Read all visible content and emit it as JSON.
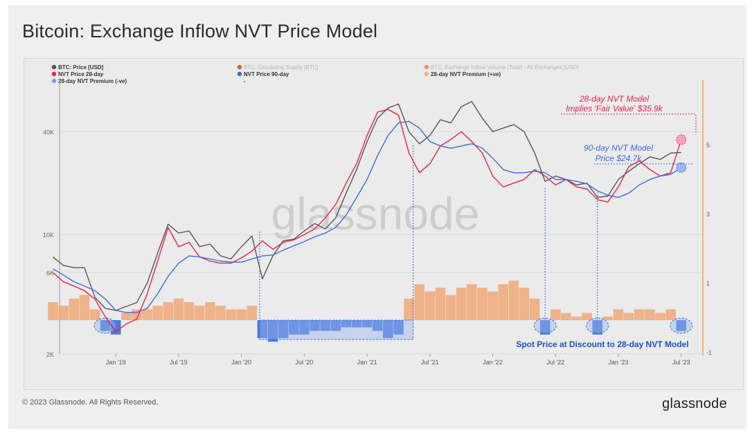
{
  "title": "Bitcoin: Exchange Inflow NVT Price Model",
  "footer": {
    "copyright": "© 2023 Glassnode. All Rights Reserved.",
    "brand": "glassnode"
  },
  "watermark": "glassnode",
  "colors": {
    "price": "#555555",
    "nvt28": "#e8204a",
    "nvt90": "#3b6bdc",
    "premium_pos": "#f0a878",
    "premium_neg": "#3b6bdc",
    "supply": "#e0592a",
    "inflow": "#e8926a"
  },
  "legend": [
    {
      "label": "BTC: Price [USD]",
      "color": "#555555",
      "muted": false
    },
    {
      "label": "BTC: Circulating Supply [BTC]",
      "color": "#e0592a",
      "muted": true
    },
    {
      "label": "BTC: Exchange Inflow Volume (Total) - All Exchanges [USD]",
      "color": "#e8926a",
      "muted": true
    },
    {
      "label": "NVT Price 28-day",
      "color": "#e8204a",
      "muted": false
    },
    {
      "label": "NVT Price 90-day",
      "color": "#3b6bdc",
      "muted": false
    },
    {
      "label": "28-day NVT Premium (+ve)",
      "color": "#f0b48a",
      "muted": false
    },
    {
      "label": "28-day NVT Premium (-ve)",
      "color": "#7aa0e8",
      "muted": false
    },
    {
      "label": "-",
      "color": "",
      "muted": false
    }
  ],
  "annotations": {
    "nvt28_line1": "28-day NVT Model",
    "nvt28_line2": "Implies 'Fair Value' $35.9k",
    "nvt90_line1": "90-day NVT Model",
    "nvt90_line2": "Price $24.7k",
    "discount": "Spot Price at Discount to 28-day NVT Model"
  },
  "chart_data": {
    "type": "line",
    "xlabel": "",
    "ylabel": "",
    "x_ticks": [
      "Jan '19",
      "Jul '19",
      "Jan '20",
      "Jul '20",
      "Jan '21",
      "Jul '21",
      "Jan '22",
      "Jul '22",
      "Jan '23",
      "Jul '23"
    ],
    "y_ticks_left": [
      "40K",
      "10K",
      "6K",
      "2K"
    ],
    "y_ticks_right": [
      "5",
      "3",
      "1",
      "-1"
    ],
    "y_scale_left": "log",
    "ylim_left": [
      2000,
      80000
    ],
    "ylim_right": [
      -1,
      7
    ],
    "legend_position": "top",
    "series": [
      {
        "name": "BTC: Price [USD]",
        "x": [
          "2018-07",
          "2018-08",
          "2018-09",
          "2018-10",
          "2018-11",
          "2018-12",
          "2019-01",
          "2019-02",
          "2019-03",
          "2019-04",
          "2019-05",
          "2019-06",
          "2019-07",
          "2019-08",
          "2019-09",
          "2019-10",
          "2019-11",
          "2019-12",
          "2020-01",
          "2020-02",
          "2020-03",
          "2020-04",
          "2020-05",
          "2020-06",
          "2020-07",
          "2020-08",
          "2020-09",
          "2020-10",
          "2020-11",
          "2020-12",
          "2021-01",
          "2021-02",
          "2021-03",
          "2021-04",
          "2021-05",
          "2021-06",
          "2021-07",
          "2021-08",
          "2021-09",
          "2021-10",
          "2021-11",
          "2021-12",
          "2022-01",
          "2022-02",
          "2022-03",
          "2022-04",
          "2022-05",
          "2022-06",
          "2022-07",
          "2022-08",
          "2022-09",
          "2022-10",
          "2022-11",
          "2022-12",
          "2023-01",
          "2023-02",
          "2023-03",
          "2023-04",
          "2023-05",
          "2023-06",
          "2023-07"
        ],
        "values": [
          7400,
          6600,
          6400,
          6400,
          4300,
          3700,
          3600,
          3800,
          4000,
          5200,
          7800,
          11500,
          10200,
          10500,
          8500,
          8800,
          7500,
          7200,
          8500,
          9800,
          5500,
          7500,
          9200,
          9400,
          10500,
          11600,
          10800,
          12500,
          17500,
          24000,
          35000,
          48000,
          55000,
          58000,
          40000,
          34000,
          38000,
          47000,
          45000,
          56000,
          60000,
          48000,
          40000,
          42000,
          44000,
          40000,
          30000,
          20500,
          22000,
          21000,
          19500,
          20000,
          16500,
          16800,
          21000,
          23500,
          26000,
          28500,
          27500,
          30000,
          30200
        ]
      },
      {
        "name": "NVT Price 28-day",
        "x": [
          "2018-07",
          "2018-08",
          "2018-09",
          "2018-10",
          "2018-11",
          "2018-12",
          "2019-01",
          "2019-02",
          "2019-03",
          "2019-04",
          "2019-05",
          "2019-06",
          "2019-07",
          "2019-08",
          "2019-09",
          "2019-10",
          "2019-11",
          "2019-12",
          "2020-01",
          "2020-02",
          "2020-03",
          "2020-04",
          "2020-05",
          "2020-06",
          "2020-07",
          "2020-08",
          "2020-09",
          "2020-10",
          "2020-11",
          "2020-12",
          "2021-01",
          "2021-02",
          "2021-03",
          "2021-04",
          "2021-05",
          "2021-06",
          "2021-07",
          "2021-08",
          "2021-09",
          "2021-10",
          "2021-11",
          "2021-12",
          "2022-01",
          "2022-02",
          "2022-03",
          "2022-04",
          "2022-05",
          "2022-06",
          "2022-07",
          "2022-08",
          "2022-09",
          "2022-10",
          "2022-11",
          "2022-12",
          "2023-01",
          "2023-02",
          "2023-03",
          "2023-04",
          "2023-05",
          "2023-06",
          "2023-07"
        ],
        "values": [
          6000,
          5300,
          5000,
          4700,
          4200,
          3300,
          2700,
          3000,
          3200,
          4500,
          7000,
          11000,
          8500,
          9000,
          7400,
          7000,
          6800,
          6800,
          7300,
          8000,
          9200,
          8200,
          9000,
          9300,
          10000,
          10800,
          12500,
          15000,
          20000,
          26000,
          38000,
          52000,
          54000,
          50000,
          30000,
          23000,
          26000,
          33000,
          36000,
          40000,
          35000,
          30000,
          22000,
          19000,
          20000,
          21000,
          24000,
          22000,
          19500,
          21000,
          19000,
          18500,
          16000,
          15500,
          19000,
          25000,
          27000,
          24000,
          22000,
          23000,
          35900
        ]
      },
      {
        "name": "NVT Price 90-day",
        "x": [
          "2018-07",
          "2018-08",
          "2018-09",
          "2018-10",
          "2018-11",
          "2018-12",
          "2019-01",
          "2019-02",
          "2019-03",
          "2019-04",
          "2019-05",
          "2019-06",
          "2019-07",
          "2019-08",
          "2019-09",
          "2019-10",
          "2019-11",
          "2019-12",
          "2020-01",
          "2020-02",
          "2020-03",
          "2020-04",
          "2020-05",
          "2020-06",
          "2020-07",
          "2020-08",
          "2020-09",
          "2020-10",
          "2020-11",
          "2020-12",
          "2021-01",
          "2021-02",
          "2021-03",
          "2021-04",
          "2021-05",
          "2021-06",
          "2021-07",
          "2021-08",
          "2021-09",
          "2021-10",
          "2021-11",
          "2021-12",
          "2022-01",
          "2022-02",
          "2022-03",
          "2022-04",
          "2022-05",
          "2022-06",
          "2022-07",
          "2022-08",
          "2022-09",
          "2022-10",
          "2022-11",
          "2022-12",
          "2023-01",
          "2023-02",
          "2023-03",
          "2023-04",
          "2023-05",
          "2023-06",
          "2023-07"
        ],
        "values": [
          6300,
          5800,
          5300,
          5000,
          4700,
          4200,
          3600,
          3500,
          3500,
          3700,
          4500,
          5700,
          6800,
          7500,
          7400,
          7200,
          7000,
          6900,
          6900,
          7200,
          7500,
          7600,
          8100,
          8600,
          9100,
          9700,
          10200,
          11000,
          13000,
          16500,
          21000,
          29000,
          38000,
          45000,
          46000,
          42000,
          35000,
          33000,
          32000,
          33000,
          34000,
          32000,
          28000,
          24000,
          23000,
          23000,
          23500,
          23000,
          21000,
          21000,
          20500,
          19800,
          18000,
          17000,
          16500,
          17500,
          19500,
          21000,
          22000,
          22500,
          24700
        ]
      }
    ],
    "premium_28d": {
      "x": [
        "2018-07",
        "2018-08",
        "2018-09",
        "2018-10",
        "2018-11",
        "2018-12",
        "2019-01",
        "2019-02",
        "2019-03",
        "2019-04",
        "2019-05",
        "2019-06",
        "2019-07",
        "2019-08",
        "2019-09",
        "2019-10",
        "2019-11",
        "2019-12",
        "2020-01",
        "2020-02",
        "2020-03",
        "2020-04",
        "2020-05",
        "2020-06",
        "2020-07",
        "2020-08",
        "2020-09",
        "2020-10",
        "2020-11",
        "2020-12",
        "2021-01",
        "2021-02",
        "2021-03",
        "2021-04",
        "2021-05",
        "2021-06",
        "2021-07",
        "2021-08",
        "2021-09",
        "2021-10",
        "2021-11",
        "2021-12",
        "2022-01",
        "2022-02",
        "2022-03",
        "2022-04",
        "2022-05",
        "2022-06",
        "2022-07",
        "2022-08",
        "2022-09",
        "2022-10",
        "2022-11",
        "2022-12",
        "2023-01",
        "2023-02",
        "2023-03",
        "2023-04",
        "2023-05",
        "2023-06",
        "2023-07"
      ],
      "values": [
        0.5,
        0.4,
        0.6,
        0.7,
        0.3,
        -0.3,
        -0.4,
        0.2,
        0.3,
        0.3,
        0.4,
        0.5,
        0.6,
        0.5,
        0.4,
        0.5,
        0.4,
        0.3,
        0.3,
        0.4,
        -0.5,
        -0.6,
        -0.5,
        -0.4,
        -0.4,
        -0.3,
        -0.3,
        -0.3,
        -0.2,
        -0.2,
        -0.2,
        -0.3,
        -0.5,
        -0.4,
        0.6,
        1.0,
        0.8,
        0.9,
        0.7,
        0.9,
        1.0,
        0.9,
        0.8,
        1.0,
        1.1,
        0.9,
        0.6,
        -0.4,
        0.3,
        0.2,
        0.1,
        0.2,
        -0.4,
        0.1,
        0.3,
        0.2,
        0.3,
        0.3,
        0.2,
        0.3,
        -0.3
      ]
    }
  }
}
